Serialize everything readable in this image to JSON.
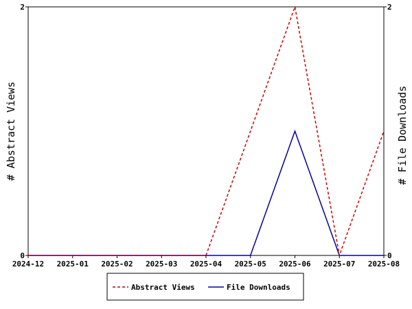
{
  "chart_data": {
    "type": "line",
    "categories": [
      "2024-12",
      "2025-01",
      "2025-02",
      "2025-03",
      "2025-04",
      "2025-05",
      "2025-06",
      "2025-07",
      "2025-08"
    ],
    "series": [
      {
        "name": "Abstract Views",
        "values": [
          0,
          0,
          0,
          0,
          0,
          1,
          2,
          0,
          1
        ],
        "color": "#cc0000",
        "style": "dashed",
        "axis": "left"
      },
      {
        "name": "File Downloads",
        "values": [
          0,
          0,
          0,
          0,
          0,
          0,
          1,
          0,
          0
        ],
        "color": "#000099",
        "style": "solid",
        "axis": "right"
      }
    ],
    "ylabel_left": "# Abstract Views",
    "ylabel_right": "# File Downloads",
    "ylim_left": [
      0,
      2
    ],
    "ylim_right": [
      0,
      2
    ],
    "yticks_left": [
      "0",
      "2"
    ],
    "yticks_right": [
      "0",
      "2"
    ],
    "grid": false,
    "legend_position": "bottom"
  }
}
